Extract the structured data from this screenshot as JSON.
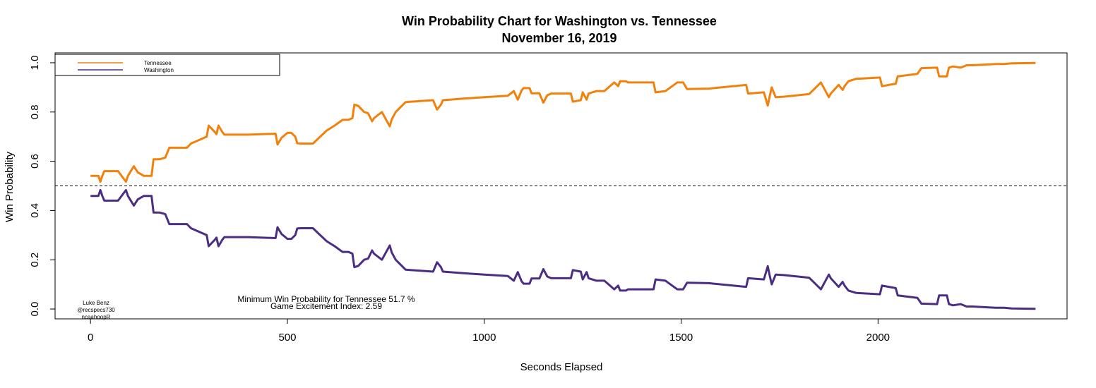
{
  "chart_data": {
    "type": "line",
    "title": "Win Probability Chart for Washington vs. Tennessee",
    "subtitle": "November 16, 2019",
    "xlabel": "Seconds Elapsed",
    "ylabel": "Win Probability",
    "xlim": [
      -90,
      2480
    ],
    "ylim": [
      -0.04,
      1.04
    ],
    "xticks": [
      0,
      500,
      1000,
      1500,
      2000
    ],
    "yticks": [
      0.0,
      0.2,
      0.4,
      0.6,
      0.8,
      1.0
    ],
    "xtick_labels": [
      "0",
      "500",
      "1000",
      "1500",
      "2000"
    ],
    "ytick_labels": [
      "0.0",
      "0.2",
      "0.4",
      "0.6",
      "0.8",
      "1.0"
    ],
    "reference_line": {
      "y": 0.5,
      "style": "dashed"
    },
    "legend": {
      "placement": "top-left",
      "boxed": true
    },
    "grid": false,
    "series": [
      {
        "name": "Tennessee",
        "color": "#F2810C",
        "x": [
          0,
          20,
          25,
          30,
          35,
          70,
          90,
          95,
          110,
          120,
          135,
          155,
          160,
          175,
          190,
          200,
          245,
          255,
          295,
          300,
          315,
          320,
          325,
          335,
          340,
          400,
          470,
          475,
          485,
          500,
          510,
          520,
          525,
          535,
          565,
          580,
          600,
          620,
          640,
          655,
          665,
          670,
          680,
          695,
          705,
          715,
          720,
          740,
          760,
          765,
          775,
          800,
          815,
          870,
          880,
          890,
          895,
          950,
          1000,
          1060,
          1075,
          1085,
          1095,
          1100,
          1115,
          1120,
          1140,
          1150,
          1160,
          1170,
          1220,
          1225,
          1245,
          1250,
          1260,
          1265,
          1285,
          1305,
          1330,
          1340,
          1345,
          1360,
          1365,
          1430,
          1435,
          1460,
          1490,
          1505,
          1515,
          1570,
          1665,
          1670,
          1710,
          1720,
          1725,
          1730,
          1740,
          1760,
          1825,
          1855,
          1875,
          1880,
          1900,
          1910,
          1915,
          1925,
          1945,
          2005,
          2010,
          2045,
          2050,
          2100,
          2110,
          2150,
          2155,
          2175,
          2180,
          2190,
          2210,
          2225,
          2240,
          2300,
          2320,
          2340,
          2400
        ],
        "values": [
          0.541,
          0.541,
          0.517,
          0.541,
          0.56,
          0.56,
          0.517,
          0.541,
          0.58,
          0.555,
          0.541,
          0.541,
          0.608,
          0.608,
          0.615,
          0.655,
          0.655,
          0.672,
          0.7,
          0.745,
          0.72,
          0.71,
          0.745,
          0.718,
          0.708,
          0.708,
          0.712,
          0.668,
          0.695,
          0.715,
          0.715,
          0.7,
          0.673,
          0.672,
          0.672,
          0.695,
          0.725,
          0.745,
          0.768,
          0.768,
          0.775,
          0.83,
          0.825,
          0.8,
          0.795,
          0.762,
          0.775,
          0.8,
          0.742,
          0.77,
          0.8,
          0.84,
          0.842,
          0.848,
          0.81,
          0.83,
          0.848,
          0.855,
          0.86,
          0.866,
          0.885,
          0.85,
          0.888,
          0.897,
          0.897,
          0.876,
          0.876,
          0.838,
          0.868,
          0.875,
          0.875,
          0.842,
          0.848,
          0.88,
          0.85,
          0.875,
          0.885,
          0.885,
          0.92,
          0.905,
          0.925,
          0.925,
          0.92,
          0.92,
          0.88,
          0.885,
          0.92,
          0.92,
          0.893,
          0.895,
          0.91,
          0.875,
          0.88,
          0.826,
          0.865,
          0.9,
          0.86,
          0.862,
          0.873,
          0.92,
          0.86,
          0.875,
          0.91,
          0.89,
          0.905,
          0.925,
          0.935,
          0.94,
          0.905,
          0.915,
          0.945,
          0.955,
          0.978,
          0.98,
          0.945,
          0.945,
          0.98,
          0.985,
          0.98,
          0.99,
          0.99,
          0.995,
          0.995,
          0.998,
          0.999
        ],
        "line_width": 3
      },
      {
        "name": "Washington",
        "color": "#4B2E83",
        "x": [
          0,
          20,
          25,
          30,
          35,
          70,
          90,
          95,
          110,
          120,
          135,
          155,
          160,
          175,
          190,
          200,
          245,
          255,
          295,
          300,
          315,
          320,
          325,
          335,
          340,
          400,
          470,
          475,
          485,
          500,
          510,
          520,
          525,
          535,
          565,
          580,
          600,
          620,
          640,
          655,
          665,
          670,
          680,
          695,
          705,
          715,
          720,
          740,
          760,
          765,
          775,
          800,
          815,
          870,
          880,
          890,
          895,
          950,
          1000,
          1060,
          1075,
          1085,
          1095,
          1100,
          1115,
          1120,
          1140,
          1150,
          1160,
          1170,
          1220,
          1225,
          1245,
          1250,
          1260,
          1265,
          1285,
          1305,
          1330,
          1340,
          1345,
          1360,
          1365,
          1430,
          1435,
          1460,
          1490,
          1505,
          1515,
          1570,
          1665,
          1670,
          1710,
          1720,
          1725,
          1730,
          1740,
          1760,
          1825,
          1855,
          1875,
          1880,
          1900,
          1910,
          1915,
          1925,
          1945,
          2005,
          2010,
          2045,
          2050,
          2100,
          2110,
          2150,
          2155,
          2175,
          2180,
          2190,
          2210,
          2225,
          2240,
          2300,
          2320,
          2340,
          2400
        ],
        "values": [
          0.459,
          0.459,
          0.483,
          0.459,
          0.44,
          0.44,
          0.483,
          0.459,
          0.42,
          0.445,
          0.459,
          0.459,
          0.392,
          0.392,
          0.385,
          0.345,
          0.345,
          0.328,
          0.3,
          0.255,
          0.28,
          0.29,
          0.255,
          0.282,
          0.292,
          0.292,
          0.288,
          0.332,
          0.305,
          0.285,
          0.285,
          0.3,
          0.327,
          0.328,
          0.328,
          0.305,
          0.275,
          0.255,
          0.232,
          0.232,
          0.225,
          0.17,
          0.175,
          0.2,
          0.205,
          0.238,
          0.225,
          0.2,
          0.258,
          0.23,
          0.2,
          0.16,
          0.158,
          0.152,
          0.19,
          0.17,
          0.152,
          0.145,
          0.14,
          0.134,
          0.115,
          0.15,
          0.112,
          0.103,
          0.103,
          0.124,
          0.124,
          0.162,
          0.132,
          0.125,
          0.125,
          0.158,
          0.152,
          0.12,
          0.15,
          0.125,
          0.115,
          0.115,
          0.08,
          0.095,
          0.075,
          0.075,
          0.08,
          0.08,
          0.12,
          0.115,
          0.08,
          0.08,
          0.107,
          0.105,
          0.09,
          0.125,
          0.12,
          0.174,
          0.135,
          0.1,
          0.14,
          0.138,
          0.127,
          0.08,
          0.14,
          0.125,
          0.09,
          0.11,
          0.095,
          0.075,
          0.065,
          0.06,
          0.095,
          0.085,
          0.055,
          0.045,
          0.022,
          0.02,
          0.055,
          0.055,
          0.02,
          0.015,
          0.02,
          0.01,
          0.01,
          0.005,
          0.005,
          0.002,
          0.001
        ],
        "line_width": 3
      }
    ]
  },
  "legend_labels": [
    "Tennessee",
    "Washington"
  ],
  "annotations": {
    "min_wp": "Minimum Win Probability for Tennessee 51.7 %",
    "excitement": "Game Excitement Index: 2.59"
  },
  "credits": [
    "Luke Benz",
    "@recspecs730",
    "ncaahoopR"
  ]
}
